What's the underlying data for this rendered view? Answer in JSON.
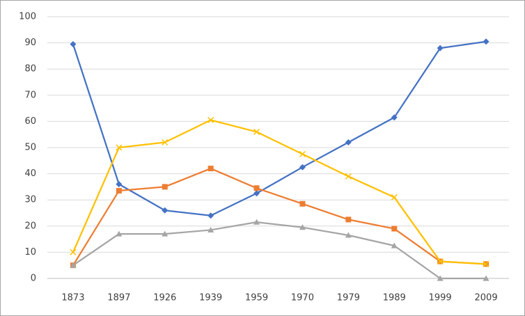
{
  "chart_data": {
    "type": "line",
    "categories": [
      "1873",
      "1897",
      "1926",
      "1939",
      "1959",
      "1970",
      "1979",
      "1989",
      "1999",
      "2009"
    ],
    "series": [
      {
        "color": "#4472c4",
        "marker": "diamond",
        "values": [
          89.5,
          36,
          26,
          24,
          32.5,
          42.5,
          52,
          61.5,
          88,
          90.5
        ]
      },
      {
        "color": "#ed7d31",
        "marker": "square",
        "values": [
          5,
          33.5,
          35,
          42,
          34.5,
          28.5,
          22.5,
          19,
          6.5,
          5.5
        ]
      },
      {
        "color": "#a5a5a5",
        "marker": "triangle",
        "values": [
          5,
          17,
          17,
          18.5,
          21.5,
          19.5,
          16.5,
          12.5,
          0,
          0
        ]
      },
      {
        "color": "#ffc000",
        "marker": "x",
        "values": [
          10,
          50,
          52,
          60.5,
          56,
          47.5,
          39,
          31,
          6.5,
          5.5
        ]
      }
    ],
    "ylim": [
      0,
      100
    ],
    "yticks": [
      0,
      10,
      20,
      30,
      40,
      50,
      60,
      70,
      80,
      90,
      100
    ],
    "grid": true
  }
}
